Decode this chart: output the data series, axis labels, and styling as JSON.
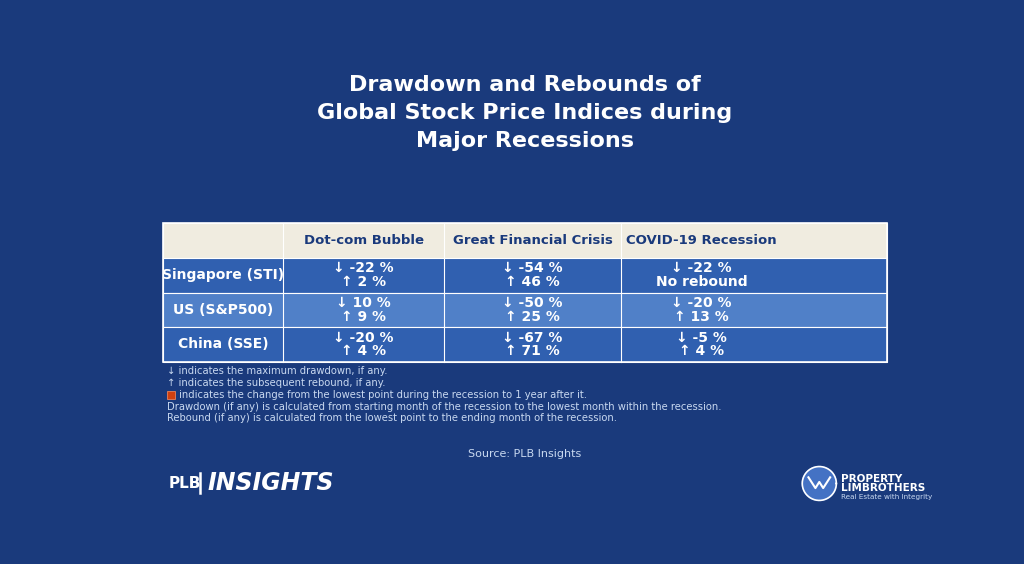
{
  "title": "Drawdown and Rebounds of\nGlobal Stock Price Indices during\nMajor Recessions",
  "background_color": "#1a3a7c",
  "table_header_bg": "#f0ece0",
  "table_row_dark_bg": "#3060b0",
  "table_row_light_bg": "#5080c8",
  "header_text_color": "#1a3a7c",
  "columns": [
    "",
    "Dot-com Bubble",
    "Great Financial Crisis",
    "COVID-19 Recession"
  ],
  "rows": [
    {
      "label": "Singapore (STI)",
      "dark": true,
      "data": [
        {
          "down": "↓ -22 %",
          "up": "↑ 2 %"
        },
        {
          "down": "↓ -54 %",
          "up": "↑ 46 %"
        },
        {
          "down": "↓ -22 %",
          "up": "No rebound"
        }
      ]
    },
    {
      "label": "US (S&P500)",
      "dark": false,
      "data": [
        {
          "down": "↓ 10 %",
          "up": "↑ 9 %"
        },
        {
          "down": "↓ -50 %",
          "up": "↑ 25 %"
        },
        {
          "down": "↓ -20 %",
          "up": "↑ 13 %"
        }
      ]
    },
    {
      "label": "China (SSE)",
      "dark": true,
      "data": [
        {
          "down": "↓ -20 %",
          "up": "↑ 4 %"
        },
        {
          "down": "↓ -67 %",
          "up": "↑ 71 %"
        },
        {
          "down": "↓ -5 %",
          "up": "↑ 4 %"
        }
      ]
    }
  ],
  "source_text": "Source: PLB Insights",
  "title_color": "#ffffff",
  "footnote_color": "#c8d8f0",
  "source_color": "#c8d8f0"
}
